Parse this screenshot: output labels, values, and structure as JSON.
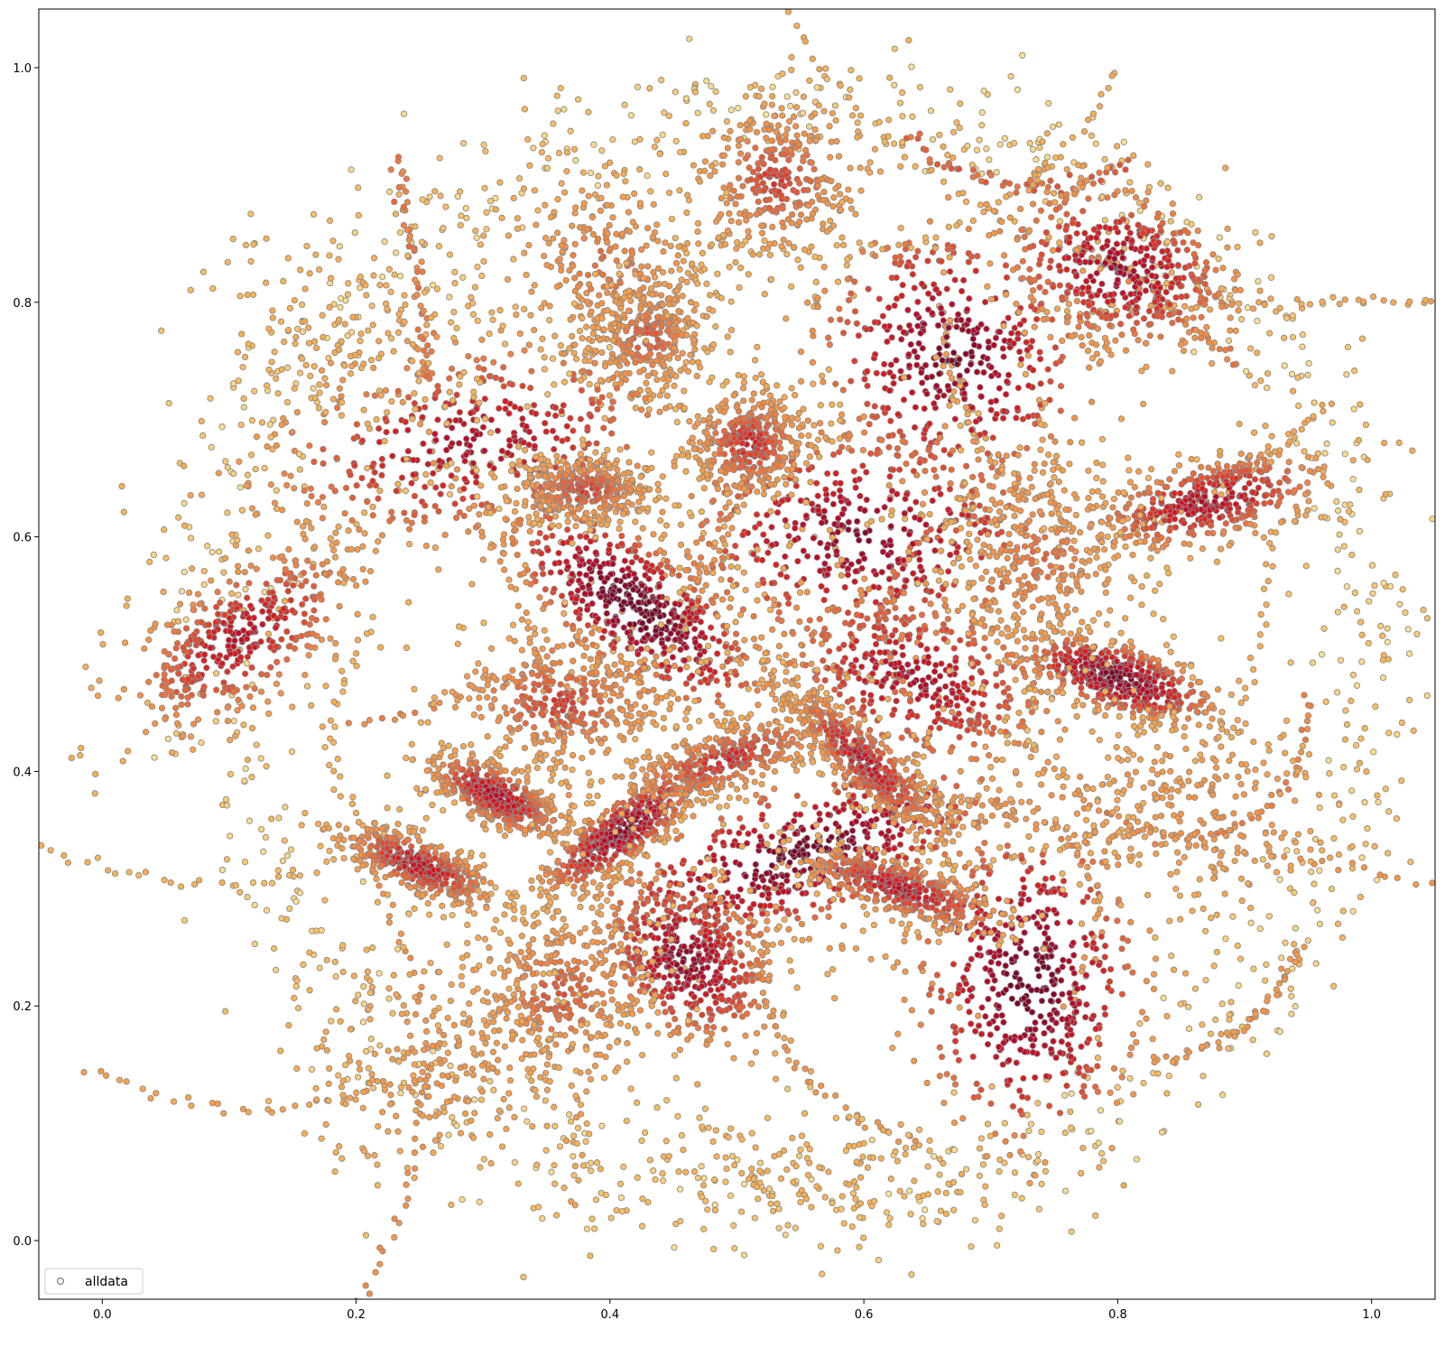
{
  "chart_data": {
    "type": "scatter",
    "title": "",
    "xlabel": "",
    "ylabel": "",
    "xlim": [
      -0.05,
      1.05
    ],
    "ylim": [
      -0.05,
      1.05
    ],
    "xticks": [
      "0.0",
      "0.2",
      "0.4",
      "0.6",
      "0.8",
      "1.0"
    ],
    "yticks": [
      "0.0",
      "0.2",
      "0.4",
      "0.6",
      "0.8",
      "1.0"
    ],
    "grid": false,
    "legend": {
      "position": "lower-left",
      "entries": [
        "alldata"
      ]
    },
    "marker": {
      "shape": "open-circle",
      "edge_color": "#808080"
    },
    "colormap": {
      "name": "YlOrRd",
      "low": "#ffeda0",
      "mid": "#fd8d3c",
      "high": "#800026"
    },
    "series": [
      {
        "name": "alldata",
        "clusters": [
          {
            "center": [
              0.53,
              0.905
            ],
            "spread": [
              0.035,
              0.035
            ],
            "density": 0.55,
            "angle": 0
          },
          {
            "center": [
              0.4,
              0.83
            ],
            "spread": [
              0.045,
              0.04
            ],
            "density": 0.45,
            "angle": -35
          },
          {
            "center": [
              0.43,
              0.77
            ],
            "spread": [
              0.025,
              0.03
            ],
            "density": 0.5,
            "angle": -40
          },
          {
            "center": [
              0.29,
              0.68
            ],
            "spread": [
              0.09,
              0.045
            ],
            "density": 0.75,
            "angle": 10
          },
          {
            "center": [
              0.11,
              0.515
            ],
            "spread": [
              0.06,
              0.03
            ],
            "density": 0.7,
            "angle": 40
          },
          {
            "center": [
              0.67,
              0.755
            ],
            "spread": [
              0.055,
              0.06
            ],
            "density": 0.9,
            "angle": 25
          },
          {
            "center": [
              0.8,
              0.83
            ],
            "spread": [
              0.035,
              0.05
            ],
            "density": 0.8,
            "angle": 70
          },
          {
            "center": [
              0.87,
              0.63
            ],
            "spread": [
              0.05,
              0.018
            ],
            "density": 0.75,
            "angle": 15
          },
          {
            "center": [
              0.8,
              0.48
            ],
            "spread": [
              0.014,
              0.04
            ],
            "density": 0.9,
            "angle": 70
          },
          {
            "center": [
              0.6,
              0.6
            ],
            "spread": [
              0.08,
              0.05
            ],
            "density": 0.85,
            "angle": 0
          },
          {
            "center": [
              0.42,
              0.54
            ],
            "spread": [
              0.06,
              0.025
            ],
            "density": 1.0,
            "angle": -40
          },
          {
            "center": [
              0.38,
              0.64
            ],
            "spread": [
              0.03,
              0.015
            ],
            "density": 0.55,
            "angle": 0
          },
          {
            "center": [
              0.64,
              0.48
            ],
            "spread": [
              0.065,
              0.04
            ],
            "density": 0.75,
            "angle": -20
          },
          {
            "center": [
              0.55,
              0.33
            ],
            "spread": [
              0.03,
              0.085
            ],
            "density": 0.95,
            "angle": -70
          },
          {
            "center": [
              0.73,
              0.22
            ],
            "spread": [
              0.045,
              0.07
            ],
            "density": 0.95,
            "angle": 0
          },
          {
            "center": [
              0.46,
              0.24
            ],
            "spread": [
              0.04,
              0.03
            ],
            "density": 0.85,
            "angle": -50
          },
          {
            "center": [
              0.41,
              0.35
            ],
            "spread": [
              0.04,
              0.012
            ],
            "density": 0.85,
            "angle": 40
          },
          {
            "center": [
              0.36,
              0.46
            ],
            "spread": [
              0.045,
              0.03
            ],
            "density": 0.55,
            "angle": 0
          },
          {
            "center": [
              0.63,
              0.3
            ],
            "spread": [
              0.012,
              0.045
            ],
            "density": 0.7,
            "angle": 70
          },
          {
            "center": [
              0.31,
              0.38
            ],
            "spread": [
              0.012,
              0.03
            ],
            "density": 0.75,
            "angle": 60
          },
          {
            "center": [
              0.25,
              0.32
            ],
            "spread": [
              0.035,
              0.012
            ],
            "density": 0.7,
            "angle": -25
          },
          {
            "center": [
              0.36,
              0.21
            ],
            "spread": [
              0.04,
              0.04
            ],
            "density": 0.5,
            "angle": 0
          },
          {
            "center": [
              0.27,
              0.15
            ],
            "spread": [
              0.06,
              0.05
            ],
            "density": 0.35,
            "angle": 0
          },
          {
            "center": [
              0.74,
              0.58
            ],
            "spread": [
              0.04,
              0.05
            ],
            "density": 0.45,
            "angle": 0
          },
          {
            "center": [
              0.87,
              0.37
            ],
            "spread": [
              0.06,
              0.05
            ],
            "density": 0.35,
            "angle": -20
          },
          {
            "center": [
              0.2,
              0.77
            ],
            "spread": [
              0.05,
              0.07
            ],
            "density": 0.18,
            "angle": 60
          },
          {
            "center": [
              0.56,
              0.06
            ],
            "spread": [
              0.09,
              0.03
            ],
            "density": 0.15,
            "angle": 0
          },
          {
            "center": [
              0.49,
              0.41
            ],
            "spread": [
              0.015,
              0.05
            ],
            "density": 0.6,
            "angle": -70
          },
          {
            "center": [
              0.6,
              0.41
            ],
            "spread": [
              0.045,
              0.012
            ],
            "density": 0.7,
            "angle": -45
          },
          {
            "center": [
              0.51,
              0.68
            ],
            "spread": [
              0.025,
              0.025
            ],
            "density": 0.6,
            "angle": 0
          }
        ]
      }
    ]
  },
  "legend": {
    "label": "alldata"
  }
}
